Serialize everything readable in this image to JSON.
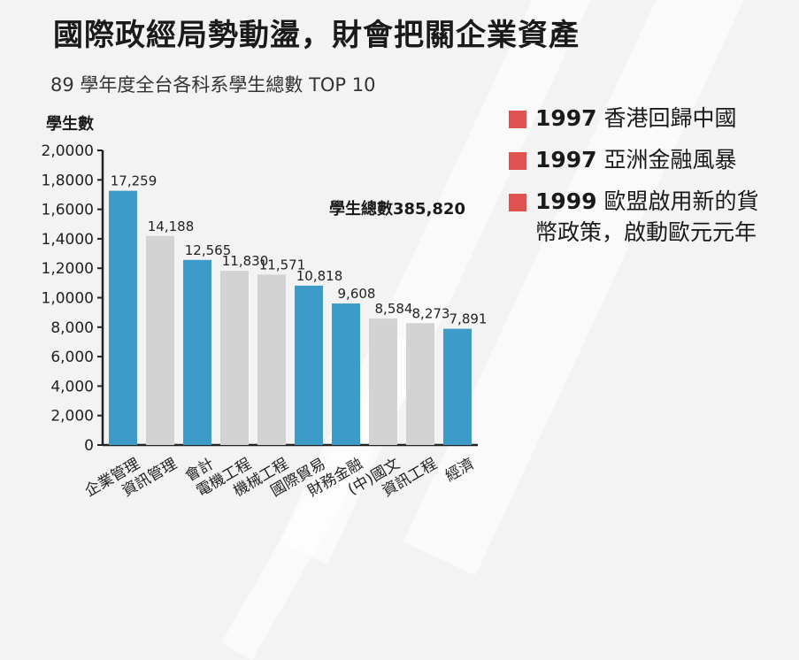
{
  "title": "國際政經局勢動盪，財會把關企業資產",
  "subtitle": "89 學年度全台各科系學生總數 TOP 10",
  "total_label": "學生總數385,820",
  "legend": [
    {
      "year": "1997",
      "text": "香港回歸中國"
    },
    {
      "year": "1997",
      "text": "亞洲金融風暴"
    },
    {
      "year": "1999",
      "text": "歐盟啟用新的貨幣政策，啟動歐元元年"
    }
  ],
  "colors": {
    "highlight": "#3d9bc9",
    "normal": "#d3d3d3",
    "legend_swatch": "#e0524f"
  },
  "chart_data": {
    "type": "bar",
    "ylabel": "學生數",
    "ylim": [
      0,
      20000
    ],
    "y_ticks": [
      0,
      2000,
      4000,
      6000,
      8000,
      10000,
      12000,
      14000,
      16000,
      18000,
      20000
    ],
    "y_tick_labels": [
      "0",
      "2,000",
      "4,000",
      "6,000",
      "8,000",
      "1,0000",
      "1,2000",
      "1,4000",
      "1,6000",
      "1,8000",
      "2,0000"
    ],
    "categories": [
      "企業管理",
      "資訊管理",
      "會計",
      "電機工程",
      "機械工程",
      "國際貿易",
      "財務金融",
      "(中)國文",
      "資訊工程",
      "經濟"
    ],
    "values": [
      17259,
      14188,
      12565,
      11830,
      11571,
      10818,
      9608,
      8584,
      8273,
      7891
    ],
    "value_labels": [
      "17,259",
      "14,188",
      "12,565",
      "11,830",
      "11,571",
      "10,818",
      "9,608",
      "8,584",
      "8,273",
      "7,891"
    ],
    "highlight": [
      true,
      false,
      true,
      false,
      false,
      true,
      true,
      false,
      false,
      true
    ]
  }
}
